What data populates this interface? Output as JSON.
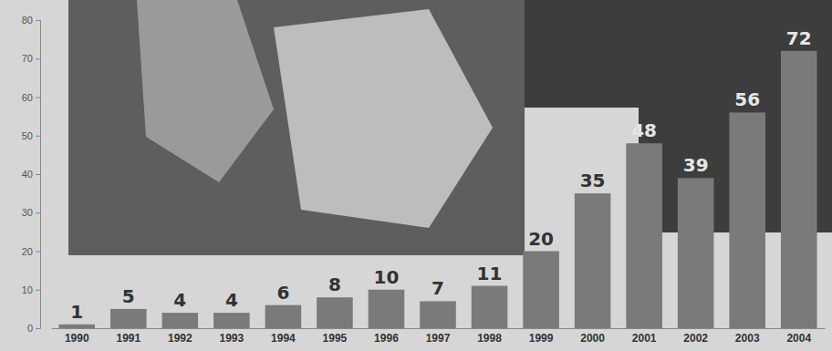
{
  "chart_data": {
    "type": "bar",
    "categories": [
      "1990",
      "1991",
      "1992",
      "1993",
      "1994",
      "1995",
      "1996",
      "1997",
      "1998",
      "1999",
      "2000",
      "2001",
      "2002",
      "2003",
      "2004"
    ],
    "values": [
      1,
      5,
      4,
      4,
      6,
      8,
      10,
      7,
      11,
      20,
      35,
      48,
      39,
      56,
      72
    ],
    "color": "#7a7a7a",
    "ylim": [
      0,
      80
    ],
    "yticks": [
      0,
      10,
      20,
      30,
      40,
      50,
      60,
      70,
      80
    ],
    "grid": false,
    "data_labels": true
  }
}
